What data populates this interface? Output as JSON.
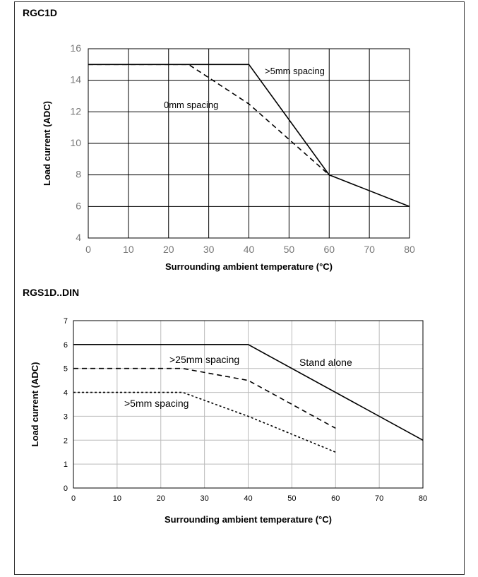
{
  "chart_data": [
    {
      "type": "line",
      "title": "RGC1D",
      "xlabel": "Surrounding ambient temperature (°C)",
      "ylabel": "Load current (ADC)",
      "xlim": [
        0,
        80
      ],
      "ylim": [
        4,
        16
      ],
      "xticks": [
        "0",
        "10",
        "20",
        "30",
        "40",
        "50",
        "60",
        "70",
        "80"
      ],
      "yticks": [
        "4",
        "6",
        "8",
        "10",
        "12",
        "14",
        "16"
      ],
      "grid": true,
      "series": [
        {
          "name": ">5mm spacing",
          "style": "solid",
          "x": [
            0,
            40,
            60,
            80
          ],
          "y": [
            15,
            15,
            8,
            6
          ]
        },
        {
          "name": "0mm spacing",
          "style": "dashed",
          "x": [
            0,
            25,
            40,
            60
          ],
          "y": [
            15,
            15,
            12.5,
            8
          ]
        }
      ]
    },
    {
      "type": "line",
      "title": "RGS1D..DIN",
      "xlabel": "Surrounding ambient temperature (°C)",
      "ylabel": "Load current (ADC)",
      "xlim": [
        0,
        80
      ],
      "ylim": [
        0,
        7
      ],
      "xticks": [
        "0",
        "10",
        "20",
        "30",
        "40",
        "50",
        "60",
        "70",
        "80"
      ],
      "yticks": [
        "0",
        "1",
        "2",
        "3",
        "4",
        "5",
        "6",
        "7"
      ],
      "grid": true,
      "series": [
        {
          "name": "Stand alone",
          "style": "solid",
          "x": [
            0,
            40,
            80
          ],
          "y": [
            6,
            6,
            2
          ]
        },
        {
          "name": ">25mm spacing",
          "style": "dashed",
          "x": [
            0,
            25,
            40,
            60
          ],
          "y": [
            5,
            5,
            4.5,
            2.5
          ]
        },
        {
          "name": ">5mm spacing",
          "style": "dotted",
          "x": [
            0,
            25,
            40,
            60
          ],
          "y": [
            4,
            4,
            3,
            1.5
          ]
        }
      ]
    }
  ]
}
